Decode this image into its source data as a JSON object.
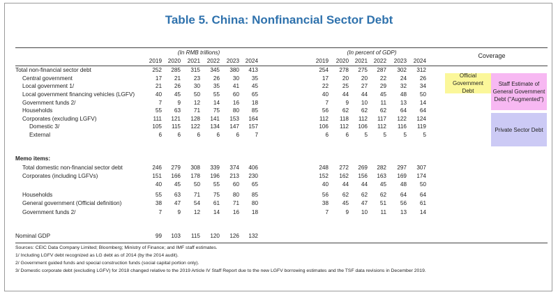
{
  "header": {
    "title": "Table 5. China: Nonfinancial Sector Debt",
    "unit_rmb": "(In RMB trillions)",
    "unit_pct": "(In percent of GDP)",
    "coverage": "Coverage"
  },
  "table": {
    "years": [
      "2019",
      "2020",
      "2021",
      "2022",
      "2023",
      "2024"
    ],
    "rows": [
      {
        "label": "Total non-financial sector debt",
        "rmb": [
          252,
          285,
          315,
          345,
          380,
          413
        ],
        "pct": [
          254,
          278,
          275,
          287,
          302,
          312
        ]
      },
      {
        "label": "Central government",
        "rmb": [
          17,
          21,
          23,
          26,
          30,
          35
        ],
        "pct": [
          17,
          20,
          20,
          22,
          24,
          26
        ]
      },
      {
        "label": "Local government 1/",
        "rmb": [
          21,
          26,
          30,
          35,
          41,
          45
        ],
        "pct": [
          22,
          25,
          27,
          29,
          32,
          34
        ]
      },
      {
        "label": "Local government financing vehicles (LGFV)",
        "rmb": [
          40,
          45,
          50,
          55,
          60,
          65
        ],
        "pct": [
          40,
          44,
          44,
          45,
          48,
          50
        ]
      },
      {
        "label": "Government funds 2/",
        "rmb": [
          7,
          9,
          12,
          14,
          16,
          18
        ],
        "pct": [
          7,
          9,
          10,
          11,
          13,
          14
        ]
      },
      {
        "label": "Households",
        "rmb": [
          55,
          63,
          71,
          75,
          80,
          85
        ],
        "pct": [
          56,
          62,
          62,
          62,
          64,
          64
        ]
      },
      {
        "label": "Corporates (excluding LGFV)",
        "rmb": [
          111,
          121,
          128,
          141,
          153,
          164
        ],
        "pct": [
          112,
          118,
          112,
          117,
          122,
          124
        ]
      },
      {
        "label": "Domestic 3/",
        "rmb": [
          105,
          115,
          122,
          134,
          147,
          157
        ],
        "pct": [
          106,
          112,
          106,
          112,
          116,
          119
        ]
      },
      {
        "label": "External",
        "rmb": [
          6,
          6,
          6,
          6,
          6,
          7
        ],
        "pct": [
          6,
          6,
          5,
          5,
          5,
          5
        ]
      },
      {
        "label": "Memo items:"
      },
      {
        "label": "Total domestic non-financial sector debt",
        "rmb": [
          246,
          279,
          308,
          339,
          374,
          406
        ],
        "pct": [
          248,
          272,
          269,
          282,
          297,
          307
        ]
      },
      {
        "label": "Corporates (including LGFVs)",
        "rmb": [
          151,
          166,
          178,
          196,
          213,
          230
        ],
        "pct": [
          152,
          162,
          156,
          163,
          169,
          174
        ]
      },
      {
        "label": null,
        "rmb": [
          40,
          45,
          50,
          55,
          60,
          65
        ],
        "pct": [
          40,
          44,
          44,
          45,
          48,
          50
        ]
      },
      {
        "label": "Households",
        "rmb": [
          55,
          63,
          71,
          75,
          80,
          85
        ],
        "pct": [
          56,
          62,
          62,
          62,
          64,
          64
        ]
      },
      {
        "label": "General government (Official definition)",
        "rmb": [
          38,
          47,
          54,
          61,
          71,
          80
        ],
        "pct": [
          38,
          45,
          47,
          51,
          56,
          61
        ]
      },
      {
        "label": "Government funds 2/",
        "rmb": [
          7,
          9,
          12,
          14,
          16,
          18
        ],
        "pct": [
          7,
          9,
          10,
          11,
          13,
          14
        ]
      },
      {
        "label": "Nominal GDP",
        "rmb": [
          99,
          103,
          115,
          120,
          126,
          132
        ]
      }
    ]
  },
  "coverage_boxes": {
    "official": "Official Government Debt",
    "augmented": "Staff Estimate of General Government Debt (\"Augmented\")",
    "private": "Private Sector Debt"
  },
  "footnotes": [
    "Sources: CEIC Data Company Limited; Bloomberg; Ministry of Finance; and IMF staff estimates.",
    "1/ Including LGFV debt recognized as LG debt as of 2014 (by the 2014 audit).",
    "2/ Government guided funds and special construction funds (social capital portion only).",
    "3/ Domestic corporate debt (excluding LGFV) for 2018 changed relative to the 2019 Article IV Staff Report due to the new LGFV borrowing estimates and the TSF data revisions in December 2019."
  ]
}
